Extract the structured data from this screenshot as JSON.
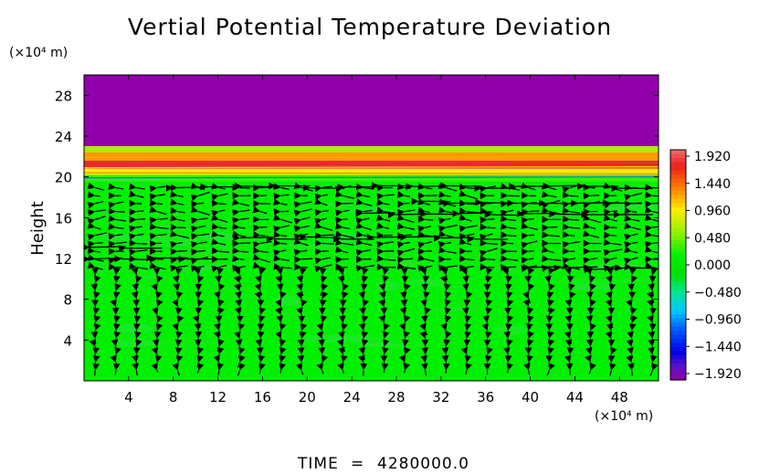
{
  "chart_data": {
    "type": "heatmap",
    "title": "Vertial Potential Temperature Deviation",
    "ylabel": "Height",
    "y_unit": "(×10⁴ m)",
    "x_unit": "(×10⁴ m)",
    "xlim": [
      0,
      51.5
    ],
    "ylim": [
      0,
      30
    ],
    "x_ticks": [
      "4",
      "8",
      "12",
      "16",
      "20",
      "24",
      "28",
      "32",
      "36",
      "40",
      "44",
      "48"
    ],
    "y_ticks": [
      "4",
      "8",
      "12",
      "16",
      "20",
      "24",
      "28"
    ],
    "colorbar": {
      "min": -1.92,
      "max": 1.92,
      "labels": [
        "1.920",
        "1.440",
        "0.960",
        "0.480",
        "0.000",
        "−0.480",
        "−0.960",
        "−1.440",
        "−1.920"
      ]
    },
    "field_bands": [
      {
        "y0": 23,
        "y1": 30,
        "value": -1.92
      },
      {
        "y0": 22.4,
        "y1": 23,
        "value": 0.6
      },
      {
        "y0": 21.6,
        "y1": 22.4,
        "value": 1.2
      },
      {
        "y0": 20.8,
        "y1": 21.6,
        "value": 1.7
      },
      {
        "y0": 20.2,
        "y1": 20.8,
        "value": 0.9
      },
      {
        "y0": 19.6,
        "y1": 20.2,
        "value": 0.3
      },
      {
        "y0": 0,
        "y1": 19.6,
        "value": 0.15
      }
    ],
    "wind_streaks": [
      {
        "x0": 0.5,
        "x1": 12,
        "y": 12
      },
      {
        "x0": 14,
        "x1": 38,
        "y": 14
      },
      {
        "x0": 0.5,
        "x1": 7,
        "y": 13
      },
      {
        "x0": 25,
        "x1": 51,
        "y": 16.3
      },
      {
        "x0": 30,
        "x1": 50,
        "y": 17.5
      },
      {
        "x0": 8,
        "x1": 51,
        "y": 19
      },
      {
        "x0": 40,
        "x1": 51,
        "y": 11
      }
    ]
  },
  "footer": {
    "label": "TIME",
    "eq": "=",
    "value": "4280000.0"
  }
}
